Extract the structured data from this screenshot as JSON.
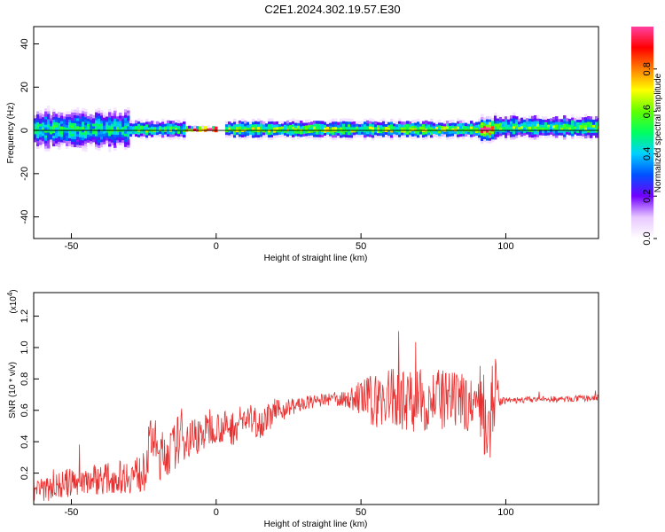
{
  "title": "C2E1.2024.302.19.57.E30",
  "chart_data": [
    {
      "type": "heatmap",
      "xlabel": "Height of straight line (km)",
      "ylabel": "Frequency (Hz)",
      "xlim": [
        -63,
        132
      ],
      "ylim": [
        -50,
        48
      ],
      "xticks": [
        -50,
        0,
        50,
        100
      ],
      "yticks": [
        -40,
        -20,
        0,
        20,
        40
      ],
      "colorbar": {
        "label": "Normalized spectral amplitude",
        "range": [
          0,
          1
        ],
        "ticks": [
          0.0,
          0.2,
          0.4,
          0.6,
          0.8
        ],
        "colors": [
          "#ffffff",
          "#e8c8ff",
          "#7000ff",
          "#0050ff",
          "#00d0ff",
          "#00ff60",
          "#60ff00",
          "#ffff00",
          "#ff8000",
          "#ff0000",
          "#ff40a0"
        ]
      },
      "bands": [
        {
          "x": [
            -63,
            -30
          ],
          "center": 0,
          "halfwidth": 7,
          "peak": 0.45
        },
        {
          "x": [
            -30,
            -11
          ],
          "center": 0,
          "halfwidth": 3,
          "peak": 0.55
        },
        {
          "x": [
            -11,
            0
          ],
          "center": 0,
          "halfwidth": 1,
          "peak": 1.0
        },
        {
          "x": [
            3,
            91
          ],
          "center": 0,
          "halfwidth": 3,
          "peak": 0.6
        },
        {
          "x": [
            91,
            95
          ],
          "center": 0,
          "halfwidth": 4,
          "peak": 0.9
        },
        {
          "x": [
            95,
            132
          ],
          "center": 1,
          "halfwidth": 4,
          "peak": 0.55
        }
      ]
    },
    {
      "type": "line",
      "xlabel": "Height of straight line (km)",
      "ylabel": "SNR (10 * v/v)",
      "multiplier": "(x10",
      "multiplier_exp": "4",
      "multiplier_close": ")",
      "xlim": [
        -63,
        132
      ],
      "ylim": [
        0,
        1.35
      ],
      "xticks": [
        -50,
        0,
        50,
        100
      ],
      "yticks": [
        0.2,
        0.4,
        0.6,
        0.8,
        1.0,
        1.2
      ],
      "series": [
        {
          "color": "#e83030",
          "x": [
            -63,
            -55,
            -45,
            -35,
            -25,
            -22,
            -20,
            -15,
            -12,
            -10,
            -5,
            0,
            5,
            10,
            15,
            20,
            25,
            30,
            35,
            40,
            45,
            50,
            55,
            60,
            65,
            70,
            75,
            80,
            85,
            90,
            92,
            94,
            96,
            98,
            100,
            110,
            120,
            132
          ],
          "y": [
            0.08,
            0.12,
            0.16,
            0.17,
            0.2,
            0.45,
            0.3,
            0.35,
            0.45,
            0.42,
            0.45,
            0.5,
            0.48,
            0.55,
            0.52,
            0.58,
            0.62,
            0.64,
            0.66,
            0.67,
            0.67,
            0.68,
            0.66,
            0.68,
            0.67,
            0.66,
            0.68,
            0.64,
            0.66,
            0.62,
            0.65,
            0.55,
            0.72,
            0.66,
            0.66,
            0.67,
            0.67,
            0.68
          ],
          "noise": [
            0.07,
            0.09,
            0.1,
            0.1,
            0.13,
            0.18,
            0.16,
            0.15,
            0.17,
            0.14,
            0.12,
            0.1,
            0.12,
            0.1,
            0.1,
            0.08,
            0.06,
            0.05,
            0.04,
            0.04,
            0.05,
            0.12,
            0.18,
            0.2,
            0.2,
            0.2,
            0.2,
            0.2,
            0.18,
            0.18,
            0.3,
            0.35,
            0.3,
            0.03,
            0.02,
            0.02,
            0.02,
            0.02
          ]
        }
      ]
    }
  ]
}
